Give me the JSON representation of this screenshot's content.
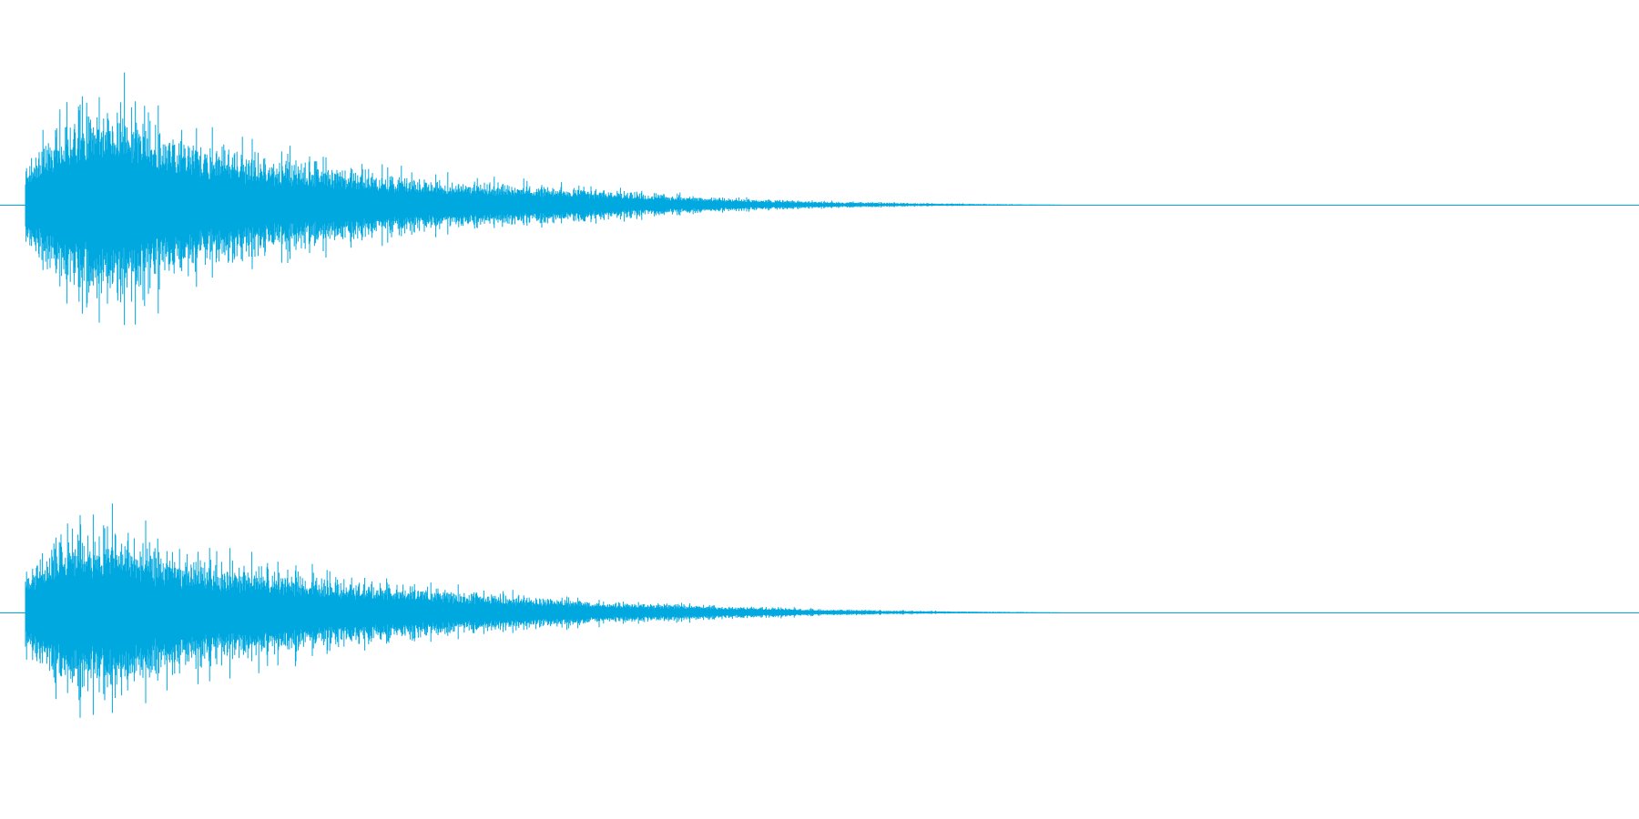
{
  "waveform": {
    "color": "#00a8e0",
    "background": "#ffffff",
    "channel_count": 2,
    "channels": [
      {
        "name": "",
        "peak_envelope": [
          0.25,
          0.4,
          0.55,
          0.62,
          0.6,
          0.52,
          0.44,
          0.38,
          0.34,
          0.31,
          0.28,
          0.26,
          0.24,
          0.22,
          0.2,
          0.18,
          0.16,
          0.15,
          0.14,
          0.13,
          0.12,
          0.11,
          0.1,
          0.09,
          0.08,
          0.07,
          0.06,
          0.05,
          0.04,
          0.035,
          0.03,
          0.025,
          0.02,
          0.018,
          0.015,
          0.012,
          0.01,
          0.008,
          0.006,
          0.004,
          0.003,
          0.002,
          0.0,
          0.0,
          0.0,
          0.0,
          0.0,
          0.0,
          0.0,
          0.0
        ]
      },
      {
        "name": "",
        "peak_envelope": [
          0.28,
          0.4,
          0.5,
          0.52,
          0.48,
          0.4,
          0.35,
          0.32,
          0.3,
          0.28,
          0.26,
          0.24,
          0.22,
          0.2,
          0.18,
          0.16,
          0.15,
          0.14,
          0.12,
          0.11,
          0.1,
          0.09,
          0.08,
          0.07,
          0.06,
          0.055,
          0.05,
          0.045,
          0.04,
          0.035,
          0.03,
          0.025,
          0.02,
          0.018,
          0.015,
          0.012,
          0.01,
          0.008,
          0.006,
          0.004,
          0.003,
          0.002,
          0.0,
          0.0,
          0.0,
          0.0,
          0.0,
          0.0,
          0.0,
          0.0
        ]
      }
    ]
  }
}
